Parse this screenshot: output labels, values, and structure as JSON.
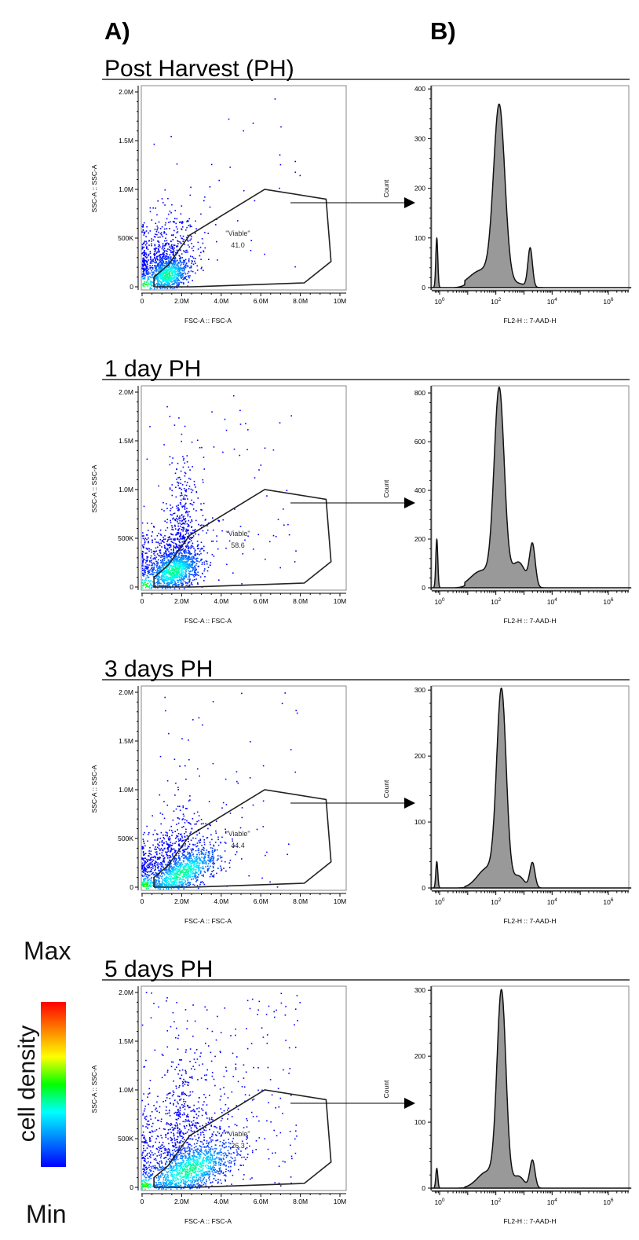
{
  "headers": {
    "a": "A)",
    "b": "B)"
  },
  "colorbar": {
    "max": "Max",
    "min": "Min",
    "label": "cell density",
    "colors": [
      "#ff0000",
      "#ff8000",
      "#ffff00",
      "#00ff00",
      "#00ffff",
      "#0080ff",
      "#0000ff"
    ]
  },
  "colors": {
    "gate": "#222222",
    "hist_fill": "#999999",
    "axis": "#000000"
  },
  "rows": [
    {
      "title": "Post Harvest (PH)"
    },
    {
      "title": "1 day PH"
    },
    {
      "title": "3 days PH"
    },
    {
      "title": "5 days PH"
    }
  ],
  "chart_data": [
    {
      "panel": "Post Harvest (PH)",
      "scatter": {
        "type": "scatter",
        "xlabel": "FSC-A :: FSC-A",
        "ylabel": "SSC-A :: SSC-A",
        "xlim": [
          0,
          10.3
        ],
        "ylim": [
          -0.03,
          2.06
        ],
        "units": "M",
        "xticks": [
          {
            "v": 0,
            "label": "0"
          },
          {
            "v": 2,
            "label": "2.0M"
          },
          {
            "v": 4,
            "label": "4.0M"
          },
          {
            "v": 6,
            "label": "6.0M"
          },
          {
            "v": 8,
            "label": "8.0M"
          },
          {
            "v": 10,
            "label": "10M"
          }
        ],
        "yticks": [
          {
            "v": 0,
            "label": "0"
          },
          {
            "v": 0.5,
            "label": "500K"
          },
          {
            "v": 1.0,
            "label": "1.0M"
          },
          {
            "v": 1.5,
            "label": "1.5M"
          },
          {
            "v": 2.0,
            "label": "2.0M"
          }
        ],
        "gate": {
          "name": "\"Viable\"",
          "percent": "41.0",
          "polygon": [
            [
              0.6,
              0
            ],
            [
              0.6,
              0.1
            ],
            [
              1.3,
              0.22
            ],
            [
              2.4,
              0.53
            ],
            [
              6.2,
              1.0
            ],
            [
              9.3,
              0.9
            ],
            [
              9.55,
              0.26
            ],
            [
              8.2,
              0.04
            ],
            [
              2.5,
              0
            ],
            [
              0.6,
              0
            ]
          ]
        }
      },
      "histogram": {
        "type": "area",
        "xlabel": "FL2-H :: 7-AAD-H",
        "ylabel": "Count",
        "xscale": "log",
        "xlim_log10": [
          -0.2,
          6.8
        ],
        "ylim": [
          0,
          405
        ],
        "yticks": [
          0,
          100,
          200,
          300,
          400
        ],
        "xticks_log10": [
          0,
          2,
          4,
          6
        ],
        "peaks": [
          {
            "log10": -0.1,
            "count": 100,
            "sd": 0.035
          },
          {
            "log10": 2.12,
            "count": 355,
            "sd": 0.2
          },
          {
            "log10": 1.5,
            "count": 35,
            "sd": 0.45
          },
          {
            "log10": 3.22,
            "count": 78,
            "sd": 0.08
          },
          {
            "log10": 2.75,
            "count": 8,
            "sd": 0.3
          }
        ]
      }
    },
    {
      "panel": "1 day PH",
      "scatter": {
        "type": "scatter",
        "xlabel": "FSC-A :: FSC-A",
        "ylabel": "SSC-A :: SSC-A",
        "xlim": [
          0,
          10.3
        ],
        "ylim": [
          -0.03,
          2.06
        ],
        "units": "M",
        "xticks": [
          {
            "v": 0,
            "label": "0"
          },
          {
            "v": 2,
            "label": "2.0M"
          },
          {
            "v": 4,
            "label": "4.0M"
          },
          {
            "v": 6,
            "label": "6.0M"
          },
          {
            "v": 8,
            "label": "8.0M"
          },
          {
            "v": 10,
            "label": "10M"
          }
        ],
        "yticks": [
          {
            "v": 0,
            "label": "0"
          },
          {
            "v": 0.5,
            "label": "500K"
          },
          {
            "v": 1.0,
            "label": "1.0M"
          },
          {
            "v": 1.5,
            "label": "1.5M"
          },
          {
            "v": 2.0,
            "label": "2.0M"
          }
        ],
        "gate": {
          "name": "\"Viable\"",
          "percent": "58.6",
          "polygon": [
            [
              0.6,
              0
            ],
            [
              0.6,
              0.1
            ],
            [
              1.3,
              0.22
            ],
            [
              2.4,
              0.53
            ],
            [
              6.2,
              1.0
            ],
            [
              9.3,
              0.9
            ],
            [
              9.55,
              0.26
            ],
            [
              8.2,
              0.04
            ],
            [
              2.5,
              0
            ],
            [
              0.6,
              0
            ]
          ]
        }
      },
      "histogram": {
        "type": "area",
        "xlabel": "FL2-H :: 7-AAD-H",
        "ylabel": "Count",
        "xscale": "log",
        "xlim_log10": [
          -0.2,
          6.8
        ],
        "ylim": [
          0,
          826
        ],
        "yticks": [
          0,
          200,
          400,
          600,
          800
        ],
        "xticks_log10": [
          0,
          2,
          4,
          6
        ],
        "peaks": [
          {
            "log10": -0.1,
            "count": 200,
            "sd": 0.035
          },
          {
            "log10": 2.12,
            "count": 800,
            "sd": 0.18
          },
          {
            "log10": 1.5,
            "count": 70,
            "sd": 0.4
          },
          {
            "log10": 2.8,
            "count": 105,
            "sd": 0.25
          },
          {
            "log10": 3.3,
            "count": 170,
            "sd": 0.1
          }
        ]
      }
    },
    {
      "panel": "3 days PH",
      "scatter": {
        "type": "scatter",
        "xlabel": "FSC-A :: FSC-A",
        "ylabel": "SSC-A :: SSC-A",
        "xlim": [
          0,
          10.3
        ],
        "ylim": [
          -0.03,
          2.06
        ],
        "units": "M",
        "xticks": [
          {
            "v": 0,
            "label": "0"
          },
          {
            "v": 2,
            "label": "2.0M"
          },
          {
            "v": 4,
            "label": "4.0M"
          },
          {
            "v": 6,
            "label": "6.0M"
          },
          {
            "v": 8,
            "label": "8.0M"
          },
          {
            "v": 10,
            "label": "10M"
          }
        ],
        "yticks": [
          {
            "v": 0,
            "label": "0"
          },
          {
            "v": 0.5,
            "label": "500K"
          },
          {
            "v": 1.0,
            "label": "1.0M"
          },
          {
            "v": 1.5,
            "label": "1.5M"
          },
          {
            "v": 2.0,
            "label": "2.0M"
          }
        ],
        "gate": {
          "name": "\"Viable\"",
          "percent": "44.4",
          "polygon": [
            [
              0.6,
              0
            ],
            [
              0.6,
              0.1
            ],
            [
              1.3,
              0.22
            ],
            [
              2.4,
              0.53
            ],
            [
              6.2,
              1.0
            ],
            [
              9.3,
              0.9
            ],
            [
              9.55,
              0.26
            ],
            [
              8.2,
              0.04
            ],
            [
              2.5,
              0
            ],
            [
              0.6,
              0
            ]
          ]
        }
      },
      "histogram": {
        "type": "area",
        "xlabel": "FL2-H :: 7-AAD-H",
        "ylabel": "Count",
        "xscale": "log",
        "xlim_log10": [
          -0.2,
          6.8
        ],
        "ylim": [
          0,
          305
        ],
        "yticks": [
          0,
          100,
          200,
          300
        ],
        "xticks_log10": [
          0,
          2,
          4,
          6
        ],
        "peaks": [
          {
            "log10": -0.1,
            "count": 40,
            "sd": 0.035
          },
          {
            "log10": 2.2,
            "count": 292,
            "sd": 0.17
          },
          {
            "log10": 1.7,
            "count": 30,
            "sd": 0.35
          },
          {
            "log10": 3.3,
            "count": 38,
            "sd": 0.09
          },
          {
            "log10": 2.8,
            "count": 18,
            "sd": 0.2
          }
        ]
      }
    },
    {
      "panel": "5 days PH",
      "scatter": {
        "type": "scatter",
        "xlabel": "FSC-A :: FSC-A",
        "ylabel": "SSC-A :: SSC-A",
        "xlim": [
          0,
          10.3
        ],
        "ylim": [
          -0.03,
          2.06
        ],
        "units": "M",
        "xticks": [
          {
            "v": 0,
            "label": "0"
          },
          {
            "v": 2,
            "label": "2.0M"
          },
          {
            "v": 4,
            "label": "4.0M"
          },
          {
            "v": 6,
            "label": "6.0M"
          },
          {
            "v": 8,
            "label": "8.0M"
          },
          {
            "v": 10,
            "label": "10M"
          }
        ],
        "yticks": [
          {
            "v": 0,
            "label": "0"
          },
          {
            "v": 0.5,
            "label": "500K"
          },
          {
            "v": 1.0,
            "label": "1.0M"
          },
          {
            "v": 1.5,
            "label": "1.5M"
          },
          {
            "v": 2.0,
            "label": "2.0M"
          }
        ],
        "gate": {
          "name": "\"Viable\"",
          "percent": "26.3",
          "polygon": [
            [
              0.6,
              0
            ],
            [
              0.6,
              0.1
            ],
            [
              1.3,
              0.22
            ],
            [
              2.4,
              0.53
            ],
            [
              6.2,
              1.0
            ],
            [
              9.3,
              0.9
            ],
            [
              9.55,
              0.26
            ],
            [
              8.2,
              0.04
            ],
            [
              2.5,
              0
            ],
            [
              0.6,
              0
            ]
          ]
        }
      },
      "histogram": {
        "type": "area",
        "xlabel": "FL2-H :: 7-AAD-H",
        "ylabel": "Count",
        "xscale": "log",
        "xlim_log10": [
          -0.2,
          6.8
        ],
        "ylim": [
          0,
          305
        ],
        "yticks": [
          0,
          100,
          200,
          300
        ],
        "xticks_log10": [
          0,
          2,
          4,
          6
        ],
        "peaks": [
          {
            "log10": -0.1,
            "count": 30,
            "sd": 0.035
          },
          {
            "log10": 2.2,
            "count": 292,
            "sd": 0.16
          },
          {
            "log10": 1.7,
            "count": 25,
            "sd": 0.35
          },
          {
            "log10": 3.3,
            "count": 42,
            "sd": 0.09
          },
          {
            "log10": 2.8,
            "count": 18,
            "sd": 0.2
          }
        ]
      }
    }
  ]
}
